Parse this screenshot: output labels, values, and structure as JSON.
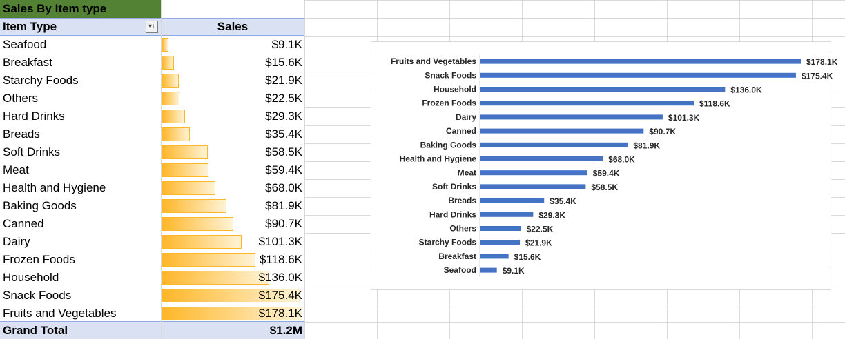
{
  "pivot": {
    "title": "Sales By Item type",
    "col_item": "Item Type",
    "col_sales": "Sales",
    "filter_glyph": "▾↑",
    "rows": [
      {
        "label": "Seafood",
        "value": 9.1,
        "display": "$9.1K"
      },
      {
        "label": "Breakfast",
        "value": 15.6,
        "display": "$15.6K"
      },
      {
        "label": "Starchy Foods",
        "value": 21.9,
        "display": "$21.9K"
      },
      {
        "label": "Others",
        "value": 22.5,
        "display": "$22.5K"
      },
      {
        "label": "Hard Drinks",
        "value": 29.3,
        "display": "$29.3K"
      },
      {
        "label": "Breads",
        "value": 35.4,
        "display": "$35.4K"
      },
      {
        "label": "Soft Drinks",
        "value": 58.5,
        "display": "$58.5K"
      },
      {
        "label": "Meat",
        "value": 59.4,
        "display": "$59.4K"
      },
      {
        "label": "Health and Hygiene",
        "value": 68.0,
        "display": "$68.0K"
      },
      {
        "label": "Baking Goods",
        "value": 81.9,
        "display": "$81.9K"
      },
      {
        "label": "Canned",
        "value": 90.7,
        "display": "$90.7K"
      },
      {
        "label": "Dairy",
        "value": 101.3,
        "display": "$101.3K"
      },
      {
        "label": "Frozen Foods",
        "value": 118.6,
        "display": "$118.6K"
      },
      {
        "label": "Household",
        "value": 136.0,
        "display": "$136.0K"
      },
      {
        "label": "Snack Foods",
        "value": 175.4,
        "display": "$175.4K"
      },
      {
        "label": "Fruits and Vegetables",
        "value": 178.1,
        "display": "$178.1K"
      }
    ],
    "grand_total_label": "Grand Total",
    "grand_total_value": "$1.2M"
  },
  "chart_data": {
    "type": "bar",
    "orientation": "horizontal",
    "categories": [
      "Fruits and Vegetables",
      "Snack Foods",
      "Household",
      "Frozen Foods",
      "Dairy",
      "Canned",
      "Baking Goods",
      "Health and Hygiene",
      "Meat",
      "Soft Drinks",
      "Breads",
      "Hard Drinks",
      "Others",
      "Starchy Foods",
      "Breakfast",
      "Seafood"
    ],
    "values": [
      178.1,
      175.4,
      136.0,
      118.6,
      101.3,
      90.7,
      81.9,
      68.0,
      59.4,
      58.5,
      35.4,
      29.3,
      22.5,
      21.9,
      15.6,
      9.1
    ],
    "data_labels": [
      "$178.1K",
      "$175.4K",
      "$136.0K",
      "$118.6K",
      "$101.3K",
      "$90.7K",
      "$81.9K",
      "$68.0K",
      "$59.4K",
      "$58.5K",
      "$35.4K",
      "$29.3K",
      "$22.5K",
      "$21.9K",
      "$15.6K",
      "$9.1K"
    ],
    "unit": "$K",
    "bar_color": "#4472c4",
    "xlim": [
      0,
      178.1
    ],
    "grid": false,
    "legend": "none"
  }
}
